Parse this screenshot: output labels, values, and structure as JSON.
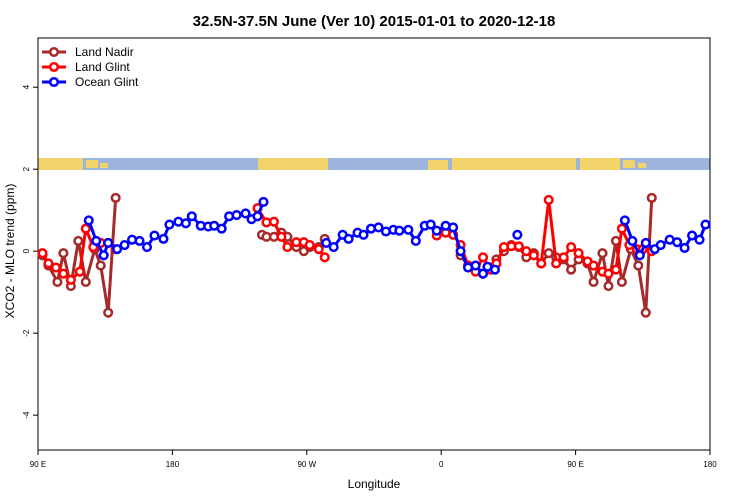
{
  "chart_data": {
    "type": "line",
    "title": "32.5N-37.5N June (Ver 10)   2015-01-01 to 2020-12-18",
    "xlabel": "Longitude",
    "ylabel": "XCO2 - MLO trend (ppm)",
    "xlim": [
      90,
      540
    ],
    "ylim": [
      -4.85,
      5.2
    ],
    "xticks": [
      {
        "value": 90,
        "label": "90 E"
      },
      180,
      {
        "value": 270,
        "label": "90 W"
      },
      {
        "value": 360,
        "label": "0"
      },
      {
        "value": 450,
        "label": "90 E"
      },
      {
        "value": 540,
        "label": "180"
      }
    ],
    "yticks": [
      -4,
      -2,
      0,
      2,
      4
    ],
    "legend": "top-left",
    "series": [
      {
        "name": "Land Nadir",
        "color": "#a52a2a",
        "x": [
          93,
          97,
          103,
          107,
          112,
          117,
          122,
          128,
          132,
          137,
          142,
          null,
          240,
          243,
          248,
          253,
          257,
          263,
          268,
          272,
          278,
          282,
          null,
          373,
          378,
          383,
          388,
          393,
          397,
          402,
          407,
          412,
          417,
          422,
          427,
          432,
          437,
          442,
          447,
          452,
          458,
          462,
          468,
          472,
          477,
          481,
          487,
          492,
          497,
          501
        ],
        "values": [
          -0.1,
          -0.35,
          -0.75,
          -0.05,
          -0.85,
          0.25,
          -0.75,
          0.05,
          -0.35,
          -1.5,
          1.3,
          null,
          0.4,
          0.35,
          0.35,
          0.45,
          0.35,
          0.1,
          0.0,
          0.1,
          0.1,
          0.3,
          null,
          -0.1,
          -0.35,
          -0.35,
          -0.55,
          -0.4,
          -0.2,
          0.0,
          0.15,
          0.1,
          -0.15,
          -0.05,
          -0.3,
          -0.05,
          -0.15,
          -0.2,
          -0.45,
          -0.2,
          -0.3,
          -0.75,
          -0.05,
          -0.85,
          0.25,
          -0.75,
          0.05,
          -0.35,
          -1.5,
          1.3
        ]
      },
      {
        "name": "Land Glint",
        "color": "#ff0000",
        "x": [
          93,
          97,
          102,
          107,
          112,
          118,
          122,
          127,
          132,
          137,
          142,
          null,
          237,
          243,
          248,
          253,
          257,
          263,
          268,
          272,
          278,
          282,
          null,
          357,
          363,
          368,
          373,
          378,
          383,
          388,
          393,
          397,
          402,
          407,
          412,
          417,
          422,
          427,
          432,
          437,
          442,
          447,
          452,
          458,
          462,
          468,
          472,
          477,
          481,
          486,
          491,
          495,
          501
        ],
        "values": [
          -0.05,
          -0.3,
          -0.4,
          -0.55,
          -0.7,
          -0.5,
          0.55,
          0.1,
          0.2,
          0.2,
          0.05,
          null,
          1.05,
          0.7,
          0.72,
          0.35,
          0.1,
          0.22,
          0.22,
          0.15,
          0.05,
          -0.15,
          null,
          0.38,
          0.45,
          0.4,
          0.15,
          -0.35,
          -0.5,
          -0.15,
          -0.45,
          -0.3,
          0.1,
          0.12,
          0.12,
          0.0,
          -0.1,
          -0.3,
          1.25,
          -0.3,
          -0.15,
          0.1,
          -0.05,
          -0.25,
          -0.35,
          -0.5,
          -0.55,
          -0.45,
          0.55,
          0.15,
          0.05,
          0.05,
          0.0
        ]
      },
      {
        "name": "Ocean Glint",
        "color": "#0000ff",
        "x": [
          124,
          129,
          134,
          137,
          143,
          148,
          153,
          158,
          163,
          168,
          174,
          178,
          184,
          189,
          193,
          199,
          204,
          208,
          213,
          218,
          223,
          229,
          233,
          237,
          241,
          null,
          283,
          288,
          294,
          298,
          304,
          308,
          313,
          318,
          323,
          328,
          332,
          338,
          343,
          349,
          353,
          357,
          363,
          368,
          373,
          378,
          383,
          388,
          391,
          396,
          null,
          411,
          null,
          483,
          488,
          493,
          497,
          503,
          507,
          513,
          518,
          523,
          528,
          533,
          537
        ],
        "values": [
          0.75,
          0.25,
          -0.1,
          0.2,
          0.05,
          0.15,
          0.28,
          0.25,
          0.1,
          0.38,
          0.3,
          0.65,
          0.72,
          0.68,
          0.85,
          0.62,
          0.6,
          0.62,
          0.55,
          0.85,
          0.88,
          0.92,
          0.78,
          0.85,
          1.2,
          null,
          0.2,
          0.1,
          0.4,
          0.3,
          0.45,
          0.4,
          0.55,
          0.58,
          0.48,
          0.52,
          0.5,
          0.52,
          0.25,
          0.62,
          0.65,
          0.5,
          0.62,
          0.58,
          0.0,
          -0.4,
          -0.35,
          -0.55,
          -0.38,
          -0.45,
          null,
          0.4,
          null,
          0.75,
          0.25,
          -0.1,
          0.2,
          0.05,
          0.15,
          0.28,
          0.22,
          0.08,
          0.38,
          0.28,
          0.65
        ]
      }
    ]
  }
}
